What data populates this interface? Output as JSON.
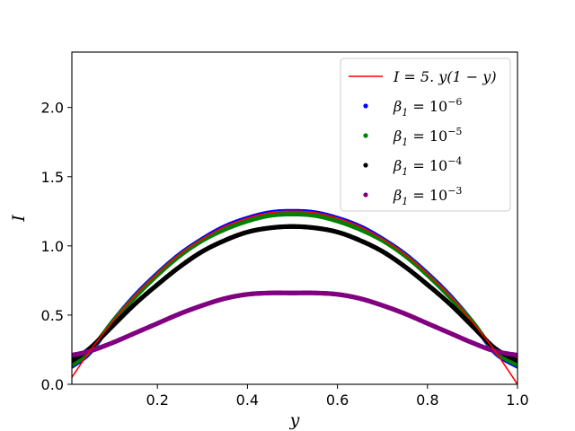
{
  "chart_data": {
    "type": "scatter",
    "title": "",
    "xlabel": "y",
    "ylabel": "I",
    "xlim": [
      0.01,
      1.0
    ],
    "ylim": [
      0.0,
      2.4
    ],
    "x_ticks": [
      0.2,
      0.4,
      0.6,
      0.8,
      1.0
    ],
    "x_tick_labels": [
      "0.2",
      "0.4",
      "0.6",
      "0.8",
      "1.0"
    ],
    "y_ticks": [
      0.0,
      0.5,
      1.0,
      1.5,
      2.0
    ],
    "y_tick_labels": [
      "0.0",
      "0.5",
      "1.0",
      "1.5",
      "2.0"
    ],
    "grid": false,
    "legend_position": "top-right",
    "reference_line": {
      "name": "I = 5. y(1 − y)",
      "color": "#ff0000",
      "x": [
        0.01,
        0.05,
        0.1,
        0.15,
        0.2,
        0.25,
        0.3,
        0.35,
        0.4,
        0.45,
        0.5,
        0.55,
        0.6,
        0.65,
        0.7,
        0.75,
        0.8,
        0.85,
        0.9,
        0.95,
        1.0
      ],
      "y": [
        0.05,
        0.24,
        0.45,
        0.64,
        0.8,
        0.94,
        1.05,
        1.14,
        1.2,
        1.24,
        1.25,
        1.24,
        1.2,
        1.14,
        1.05,
        0.94,
        0.8,
        0.64,
        0.45,
        0.24,
        0.0
      ]
    },
    "series": [
      {
        "name": "β₁ = 10⁻⁶",
        "legend_base": "β",
        "legend_sub": "1",
        "legend_eq": " = 10",
        "legend_sup": "−6",
        "color": "#0000ff",
        "x": [
          0.01,
          0.05,
          0.1,
          0.15,
          0.2,
          0.25,
          0.3,
          0.35,
          0.4,
          0.45,
          0.5,
          0.55,
          0.6,
          0.65,
          0.7,
          0.75,
          0.8,
          0.85,
          0.9,
          0.95,
          1.0
        ],
        "y": [
          0.13,
          0.23,
          0.45,
          0.64,
          0.8,
          0.94,
          1.05,
          1.14,
          1.2,
          1.24,
          1.25,
          1.24,
          1.2,
          1.14,
          1.05,
          0.94,
          0.8,
          0.64,
          0.45,
          0.23,
          0.13
        ]
      },
      {
        "name": "β₁ = 10⁻⁵",
        "legend_base": "β",
        "legend_sub": "1",
        "legend_eq": " = 10",
        "legend_sup": "−5",
        "color": "#008000",
        "x": [
          0.01,
          0.05,
          0.1,
          0.15,
          0.2,
          0.25,
          0.3,
          0.35,
          0.4,
          0.45,
          0.5,
          0.55,
          0.6,
          0.65,
          0.7,
          0.75,
          0.8,
          0.85,
          0.9,
          0.95,
          1.0
        ],
        "y": [
          0.14,
          0.24,
          0.45,
          0.63,
          0.79,
          0.93,
          1.04,
          1.12,
          1.18,
          1.22,
          1.23,
          1.22,
          1.18,
          1.12,
          1.04,
          0.93,
          0.79,
          0.63,
          0.45,
          0.24,
          0.14
        ]
      },
      {
        "name": "β₁ = 10⁻⁴",
        "legend_base": "β",
        "legend_sub": "1",
        "legend_eq": " = 10",
        "legend_sup": "−4",
        "color": "#000000",
        "x": [
          0.01,
          0.05,
          0.1,
          0.15,
          0.2,
          0.25,
          0.3,
          0.35,
          0.4,
          0.45,
          0.5,
          0.55,
          0.6,
          0.65,
          0.7,
          0.75,
          0.8,
          0.85,
          0.9,
          0.95,
          1.0
        ],
        "y": [
          0.17,
          0.26,
          0.42,
          0.58,
          0.72,
          0.85,
          0.96,
          1.04,
          1.1,
          1.13,
          1.14,
          1.13,
          1.1,
          1.04,
          0.96,
          0.85,
          0.72,
          0.58,
          0.42,
          0.26,
          0.17
        ]
      },
      {
        "name": "β₁ = 10⁻³",
        "legend_base": "β",
        "legend_sub": "1",
        "legend_eq": " = 10",
        "legend_sup": "−3",
        "color": "#800080",
        "x": [
          0.01,
          0.05,
          0.1,
          0.15,
          0.2,
          0.25,
          0.3,
          0.35,
          0.4,
          0.45,
          0.5,
          0.55,
          0.6,
          0.65,
          0.7,
          0.75,
          0.8,
          0.85,
          0.9,
          0.95,
          1.0
        ],
        "y": [
          0.21,
          0.24,
          0.3,
          0.37,
          0.44,
          0.51,
          0.57,
          0.62,
          0.65,
          0.66,
          0.66,
          0.66,
          0.65,
          0.62,
          0.57,
          0.51,
          0.44,
          0.37,
          0.3,
          0.24,
          0.21
        ]
      }
    ]
  }
}
